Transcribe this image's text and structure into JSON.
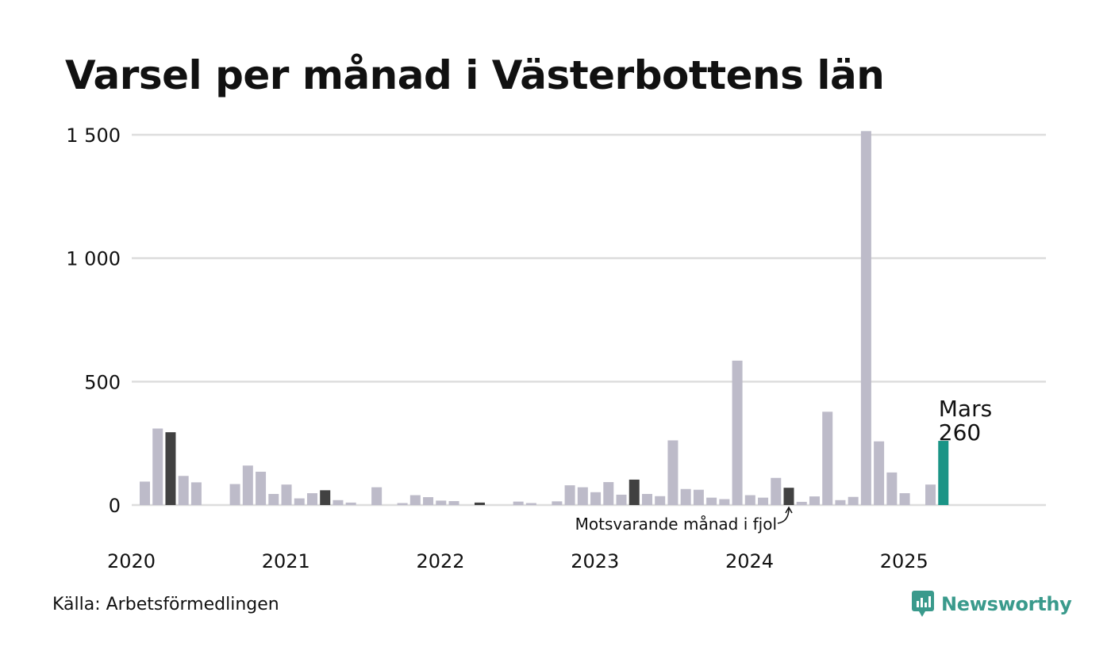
{
  "title": "Varsel per månad i Västerbottens län",
  "source": "Källa: Arbetsförmedlingen",
  "brand": "Newsworthy",
  "colors": {
    "normal": "#bdbbc9",
    "same_month": "#414141",
    "latest": "#1a9486",
    "grid": "#dddddd",
    "brand": "#3a9a8c"
  },
  "chart_data": {
    "type": "bar",
    "ylim": [
      0,
      1500
    ],
    "yticks": [
      0,
      500,
      1000,
      1500
    ],
    "ytick_labels": [
      "0",
      "500",
      "1 000",
      "1 500"
    ],
    "xtick_labels": [
      "2020",
      "2021",
      "2022",
      "2023",
      "2024",
      "2025"
    ],
    "grid": true,
    "categories": [
      "2020-01",
      "2020-02",
      "2020-03",
      "2020-04",
      "2020-05",
      "2020-06",
      "2020-07",
      "2020-08",
      "2020-09",
      "2020-10",
      "2020-11",
      "2020-12",
      "2021-01",
      "2021-02",
      "2021-03",
      "2021-04",
      "2021-05",
      "2021-06",
      "2021-07",
      "2021-08",
      "2021-09",
      "2021-10",
      "2021-11",
      "2021-12",
      "2022-01",
      "2022-02",
      "2022-03",
      "2022-04",
      "2022-05",
      "2022-06",
      "2022-07",
      "2022-08",
      "2022-09",
      "2022-10",
      "2022-11",
      "2022-12",
      "2023-01",
      "2023-02",
      "2023-03",
      "2023-04",
      "2023-05",
      "2023-06",
      "2023-07",
      "2023-08",
      "2023-09",
      "2023-10",
      "2023-11",
      "2023-12",
      "2024-01",
      "2024-02",
      "2024-03",
      "2024-04",
      "2024-05",
      "2024-06",
      "2024-07",
      "2024-08",
      "2024-09",
      "2024-10",
      "2024-11",
      "2024-12",
      "2025-01",
      "2025-02",
      "2025-03"
    ],
    "values": [
      95,
      310,
      295,
      118,
      92,
      0,
      0,
      85,
      160,
      135,
      45,
      83,
      27,
      48,
      60,
      20,
      10,
      0,
      72,
      0,
      8,
      40,
      32,
      18,
      16,
      0,
      10,
      0,
      0,
      14,
      8,
      0,
      15,
      80,
      72,
      52,
      93,
      42,
      103,
      45,
      36,
      262,
      65,
      62,
      30,
      24,
      585,
      40,
      30,
      110,
      70,
      13,
      35,
      378,
      20,
      33,
      1515,
      258,
      132,
      48,
      0,
      83,
      260
    ],
    "highlight_same_month": [
      "2020-03",
      "2021-03",
      "2022-03",
      "2023-03",
      "2024-03"
    ],
    "highlight_latest": "2025-03",
    "latest_label": {
      "month": "Mars",
      "value": "260"
    },
    "annotation": "Motsvarande månad i fjol"
  }
}
